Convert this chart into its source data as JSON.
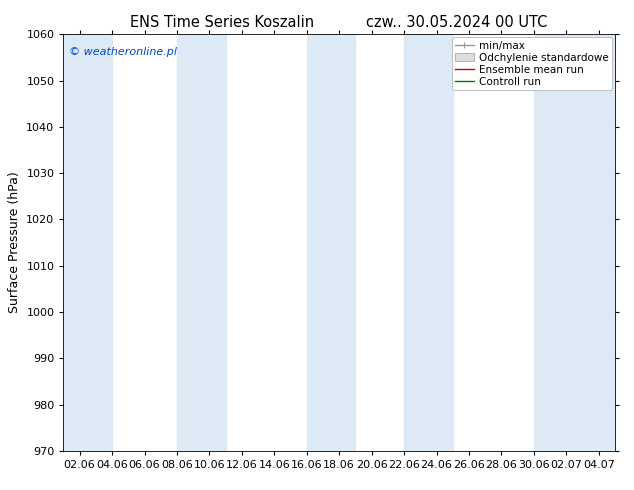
{
  "title_left": "ENS Time Series Koszalin",
  "title_right": "czw.. 30.05.2024 00 UTC",
  "ylabel": "Surface Pressure (hPa)",
  "ylim": [
    970,
    1060
  ],
  "yticks": [
    970,
    980,
    990,
    1000,
    1010,
    1020,
    1030,
    1040,
    1050,
    1060
  ],
  "x_labels": [
    "02.06",
    "04.06",
    "06.06",
    "08.06",
    "10.06",
    "12.06",
    "14.06",
    "16.06",
    "18.06",
    "20.06",
    "22.06",
    "24.06",
    "26.06",
    "28.06",
    "30.06",
    "02.07",
    "04.07"
  ],
  "band_color": "#ddeaf5",
  "background_color": "#ffffff",
  "copyright_text": "© weatheronline.pl",
  "copyright_color": "#0044cc",
  "legend_items": [
    {
      "label": "min/max",
      "color": "#999999",
      "lw": 1.0
    },
    {
      "label": "Odchylenie standardowe",
      "color": "#cccccc",
      "lw": 5
    },
    {
      "label": "Ensemble mean run",
      "color": "#cc0000",
      "lw": 1.0
    },
    {
      "label": "Controll run",
      "color": "#007700",
      "lw": 1.0
    }
  ],
  "band_positions": [
    0,
    2,
    4,
    7,
    9,
    11,
    14,
    16
  ],
  "figsize": [
    6.34,
    4.9
  ],
  "dpi": 100,
  "title_fontsize": 10.5,
  "tick_fontsize": 8,
  "ylabel_fontsize": 9,
  "legend_fontsize": 7.5
}
